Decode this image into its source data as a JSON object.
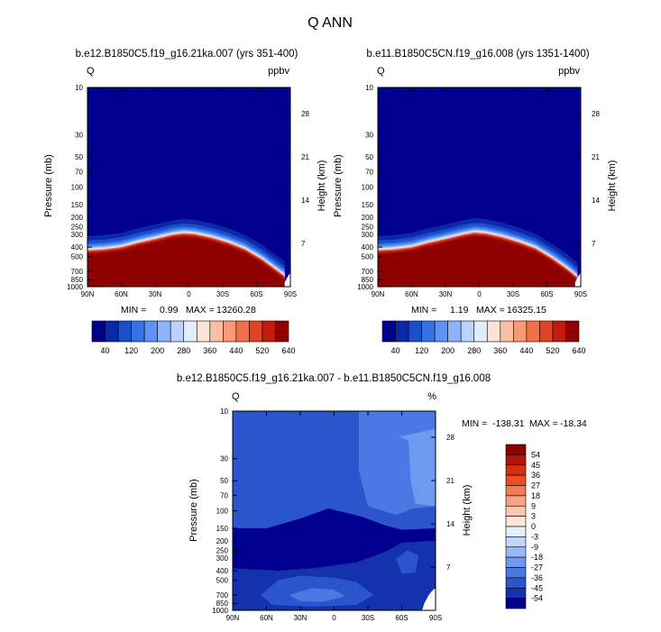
{
  "figure": {
    "title": "Q ANN"
  },
  "chart_data": [
    {
      "type": "heatmap",
      "title": "b.e12.B1850C5.f19_g16.21ka.007 (yrs 351-400)",
      "corner_left": "Q",
      "corner_right": "ppbv",
      "xlabel": "",
      "ylabel": "Pressure (mb)",
      "ylabel_right": "Height (km)",
      "x_ticks": [
        "90N",
        "60N",
        "30N",
        "0",
        "30S",
        "60S",
        "90S"
      ],
      "y_ticks": [
        "10",
        "30",
        "50",
        "70",
        "100",
        "150",
        "200",
        "250",
        "300",
        "400",
        "500",
        "700",
        "850",
        "1000"
      ],
      "y_right_ticks": [
        "28",
        "21",
        "14",
        "7"
      ],
      "stats": {
        "min_label": "MIN =",
        "min": "0.99",
        "max_label": "MAX =",
        "max": "13260.28"
      },
      "scale": "log-pressure",
      "colorbar": {
        "orientation": "horizontal",
        "labels": [
          "40",
          "120",
          "200",
          "280",
          "360",
          "440",
          "520",
          "640"
        ],
        "colors": [
          "#00008f",
          "#0c28a8",
          "#1a4fc9",
          "#3472e6",
          "#5c93f5",
          "#8db3fb",
          "#bcd2fc",
          "#e4ebfb",
          "#fbe3d6",
          "#f9c0a4",
          "#f69a77",
          "#f16f4b",
          "#e14321",
          "#c01b0b",
          "#8f0000"
        ]
      },
      "contour_boundary_pressure_mb": [
        {
          "lat": 90,
          "p": 430
        },
        {
          "lat": 75,
          "p": 420
        },
        {
          "lat": 60,
          "p": 400
        },
        {
          "lat": 45,
          "p": 360
        },
        {
          "lat": 30,
          "p": 330
        },
        {
          "lat": 15,
          "p": 300
        },
        {
          "lat": 5,
          "p": 290
        },
        {
          "lat": -5,
          "p": 295
        },
        {
          "lat": -20,
          "p": 320
        },
        {
          "lat": -35,
          "p": 360
        },
        {
          "lat": -50,
          "p": 420
        },
        {
          "lat": -65,
          "p": 530
        },
        {
          "lat": -78,
          "p": 680
        },
        {
          "lat": -85,
          "p": 780
        }
      ]
    },
    {
      "type": "heatmap",
      "title": "b.e11.B1850C5CN.f19_g16.008 (yrs 1351-1400)",
      "corner_left": "Q",
      "corner_right": "ppbv",
      "xlabel": "",
      "ylabel": "Pressure (mb)",
      "ylabel_right": "Height (km)",
      "x_ticks": [
        "90N",
        "60N",
        "30N",
        "0",
        "30S",
        "60S",
        "90S"
      ],
      "y_ticks": [
        "10",
        "30",
        "50",
        "70",
        "100",
        "150",
        "200",
        "250",
        "300",
        "400",
        "500",
        "700",
        "850",
        "1000"
      ],
      "y_right_ticks": [
        "28",
        "21",
        "14",
        "7"
      ],
      "stats": {
        "min_label": "MIN =",
        "min": "1.19",
        "max_label": "MAX =",
        "max": "16325.15"
      },
      "scale": "log-pressure",
      "colorbar": {
        "orientation": "horizontal",
        "labels": [
          "40",
          "120",
          "200",
          "280",
          "360",
          "440",
          "520",
          "640"
        ],
        "colors": [
          "#00008f",
          "#0c28a8",
          "#1a4fc9",
          "#3472e6",
          "#5c93f5",
          "#8db3fb",
          "#bcd2fc",
          "#e4ebfb",
          "#fbe3d6",
          "#f9c0a4",
          "#f69a77",
          "#f16f4b",
          "#e14321",
          "#c01b0b",
          "#8f0000"
        ]
      },
      "contour_boundary_pressure_mb": [
        {
          "lat": 90,
          "p": 430
        },
        {
          "lat": 75,
          "p": 420
        },
        {
          "lat": 60,
          "p": 400
        },
        {
          "lat": 45,
          "p": 360
        },
        {
          "lat": 30,
          "p": 330
        },
        {
          "lat": 15,
          "p": 300
        },
        {
          "lat": 5,
          "p": 285
        },
        {
          "lat": -5,
          "p": 290
        },
        {
          "lat": -20,
          "p": 315
        },
        {
          "lat": -35,
          "p": 355
        },
        {
          "lat": -50,
          "p": 410
        },
        {
          "lat": -65,
          "p": 520
        },
        {
          "lat": -78,
          "p": 660
        },
        {
          "lat": -87,
          "p": 800
        }
      ]
    },
    {
      "type": "heatmap",
      "title": "b.e12.B1850C5.f19_g16.21ka.007 - b.e11.B1850C5CN.f19_g16.008",
      "corner_left": "Q",
      "corner_right": "%",
      "xlabel": "",
      "ylabel": "Pressure (mb)",
      "ylabel_right": "Height (km)",
      "x_ticks": [
        "90N",
        "60N",
        "30N",
        "0",
        "30S",
        "60S",
        "90S"
      ],
      "y_ticks": [
        "10",
        "30",
        "50",
        "70",
        "100",
        "150",
        "200",
        "250",
        "300",
        "400",
        "500",
        "700",
        "850",
        "1000"
      ],
      "y_right_ticks": [
        "28",
        "21",
        "14",
        "7"
      ],
      "stats": {
        "min_label": "MIN =",
        "min": "-138.31",
        "max_label": "MAX =",
        "max": "-18.34"
      },
      "scale": "log-pressure",
      "colorbar": {
        "orientation": "vertical",
        "labels": [
          "54",
          "45",
          "36",
          "27",
          "18",
          "9",
          "3",
          "0",
          "-3",
          "-9",
          "-18",
          "-27",
          "-36",
          "-45",
          "-54"
        ],
        "colors": [
          "#8f0000",
          "#b21506",
          "#d3300f",
          "#ea4f23",
          "#f37a52",
          "#f8a582",
          "#fbc9b0",
          "#fde6d8",
          "#e8eefc",
          "#c2d4fb",
          "#98b7f7",
          "#6f98f0",
          "#4a78e4",
          "#2a55cd",
          "#1432ad",
          "#00008f"
        ]
      }
    }
  ]
}
